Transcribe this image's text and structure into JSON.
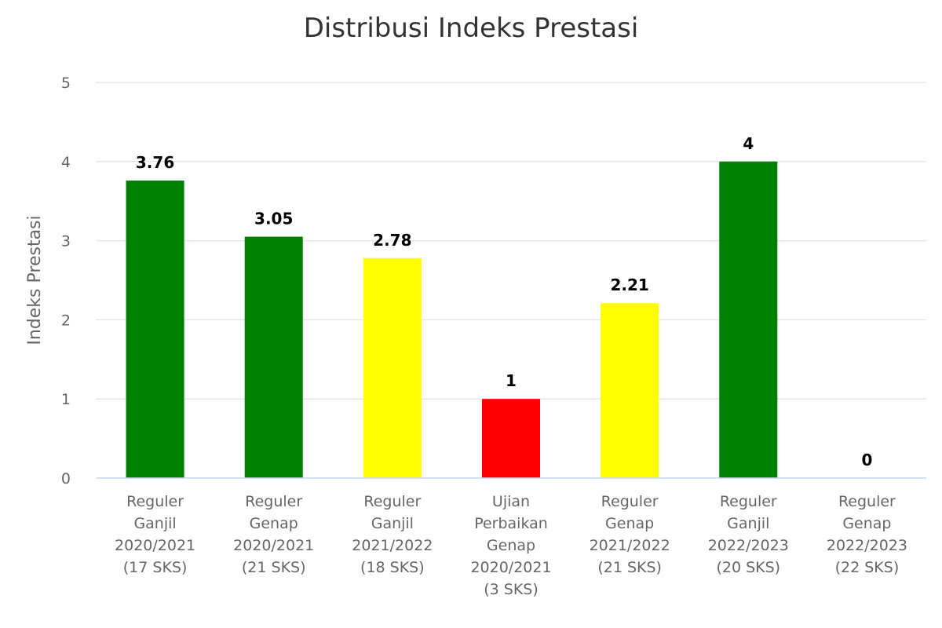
{
  "chart_data": {
    "type": "bar",
    "title": "Distribusi Indeks Prestasi",
    "xlabel": "",
    "ylabel": "Indeks Prestasi",
    "ylim": [
      0,
      5
    ],
    "yticks": [
      "0",
      "1",
      "2",
      "3",
      "4",
      "5"
    ],
    "grid": true,
    "categories": [
      [
        "Reguler",
        "Ganjil",
        "2020/2021",
        "(17 SKS)"
      ],
      [
        "Reguler",
        "Genap",
        "2020/2021",
        "(21 SKS)"
      ],
      [
        "Reguler",
        "Ganjil",
        "2021/2022",
        "(18 SKS)"
      ],
      [
        "Ujian",
        "Perbaikan",
        "Genap",
        "2020/2021",
        "(3 SKS)"
      ],
      [
        "Reguler",
        "Genap",
        "2021/2022",
        "(21 SKS)"
      ],
      [
        "Reguler",
        "Ganjil",
        "2022/2023",
        "(20 SKS)"
      ],
      [
        "Reguler",
        "Genap",
        "2022/2023",
        "(22 SKS)"
      ]
    ],
    "values": [
      3.76,
      3.05,
      2.78,
      1,
      2.21,
      4,
      0
    ],
    "data_labels": [
      "3.76",
      "3.05",
      "2.78",
      "1",
      "2.21",
      "4",
      "0"
    ],
    "colors": [
      "#008000",
      "#008000",
      "#ffff00",
      "#ff0000",
      "#ffff00",
      "#008000",
      "#008000"
    ]
  }
}
